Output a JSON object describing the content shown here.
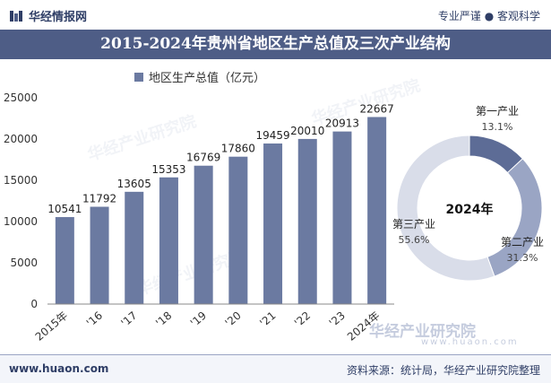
{
  "header": {
    "brand": "华经情报网",
    "slogan": "专业严谨 ● 客观科学"
  },
  "title": "2015-2024年贵州省地区生产总值及三次产业结构",
  "legend": {
    "label": "地区生产总值（亿元）"
  },
  "chart_data": [
    {
      "type": "bar",
      "title": "",
      "series": [
        {
          "name": "地区生产总值（亿元）",
          "values": [
            10541,
            11792,
            13605,
            15353,
            16769,
            17860,
            19459,
            20010,
            20913,
            22667
          ]
        }
      ],
      "categories": [
        "2015年",
        "'16",
        "'17",
        "'18",
        "'19",
        "'20",
        "'21",
        "'22",
        "'23",
        "2024年"
      ],
      "ylim": [
        0,
        25000
      ],
      "yticks": [
        0,
        5000,
        10000,
        15000,
        20000,
        25000
      ],
      "grid": false,
      "colors": {
        "bar": "#6b7aa1"
      }
    },
    {
      "type": "pie",
      "center_label": "2024年",
      "slices": [
        {
          "name": "第一产业",
          "value": 13.1,
          "label": "13.1%",
          "color": "#5d6c96"
        },
        {
          "name": "第二产业",
          "value": 31.3,
          "label": "31.3%",
          "color": "#9aa5c4"
        },
        {
          "name": "第三产业",
          "value": 55.6,
          "label": "55.6%",
          "color": "#d9dde9"
        }
      ]
    }
  ],
  "watermark": {
    "logo_text": "华经产业研究院",
    "url_text": "www.huaon.com"
  },
  "footer": {
    "website": "www.huaon.com",
    "source": "资料来源：统计局，华经产业研究院整理"
  }
}
